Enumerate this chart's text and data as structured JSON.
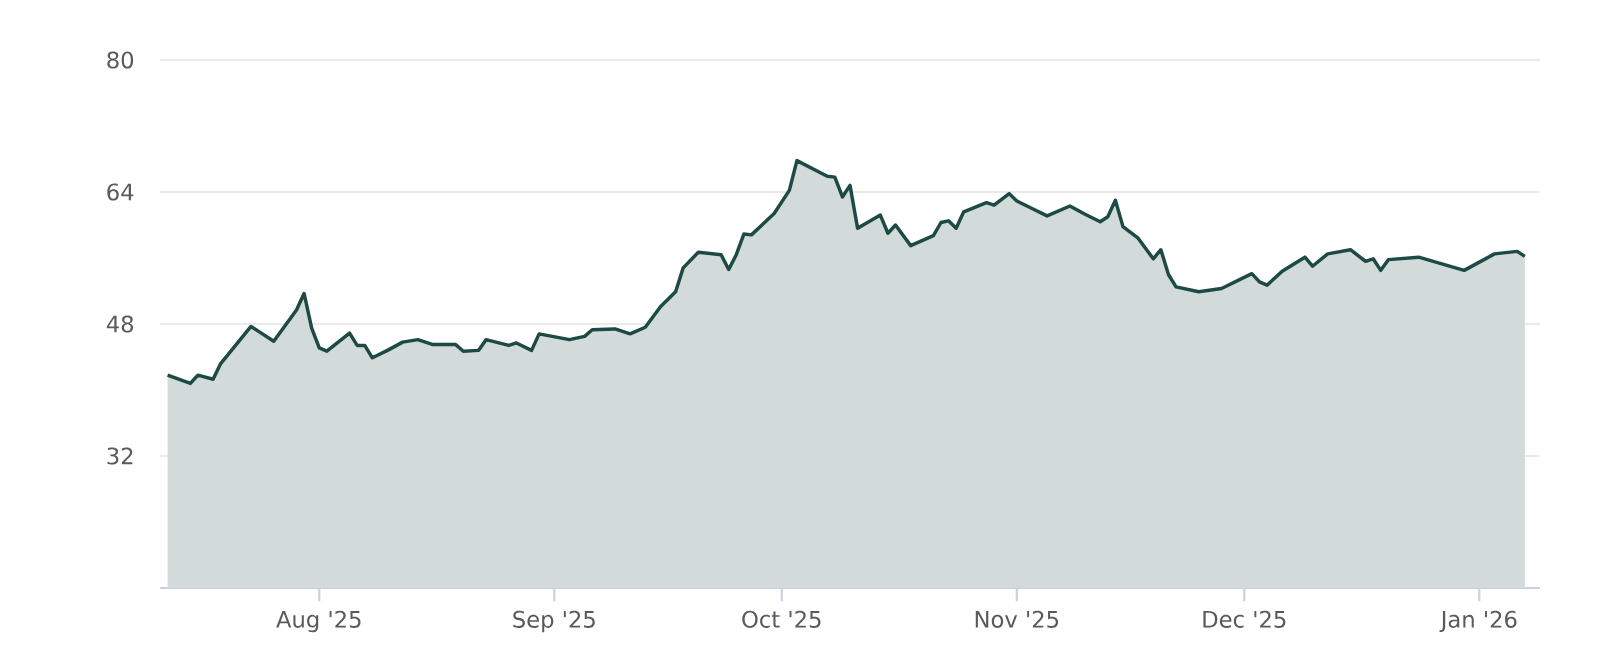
{
  "chart_data": {
    "type": "area",
    "grid": "y",
    "xlim": [
      "2025-07-11",
      "2026-01-09"
    ],
    "xticks": [
      {
        "value": "2025-08-01",
        "label": "Aug '25"
      },
      {
        "value": "2025-09-01",
        "label": "Sep '25"
      },
      {
        "value": "2025-10-01",
        "label": "Oct '25"
      },
      {
        "value": "2025-11-01",
        "label": "Nov '25"
      },
      {
        "value": "2025-12-01",
        "label": "Dec '25"
      },
      {
        "value": "2026-01-01",
        "label": "Jan '26"
      }
    ],
    "ylim": [
      16,
      80
    ],
    "yticks": [
      32,
      48,
      64,
      80
    ],
    "x": [
      "2025-07-12",
      "2025-07-15",
      "2025-07-16",
      "2025-07-18",
      "2025-07-19",
      "2025-07-23",
      "2025-07-24",
      "2025-07-26",
      "2025-07-29",
      "2025-07-30",
      "2025-07-31",
      "2025-08-01",
      "2025-08-02",
      "2025-08-05",
      "2025-08-06",
      "2025-08-07",
      "2025-08-08",
      "2025-08-10",
      "2025-08-12",
      "2025-08-14",
      "2025-08-16",
      "2025-08-19",
      "2025-08-20",
      "2025-08-22",
      "2025-08-23",
      "2025-08-26",
      "2025-08-27",
      "2025-08-29",
      "2025-08-30",
      "2025-09-03",
      "2025-09-05",
      "2025-09-06",
      "2025-09-09",
      "2025-09-11",
      "2025-09-13",
      "2025-09-15",
      "2025-09-17",
      "2025-09-18",
      "2025-09-20",
      "2025-09-23",
      "2025-09-24",
      "2025-09-25",
      "2025-09-26",
      "2025-09-27",
      "2025-09-30",
      "2025-10-02",
      "2025-10-03",
      "2025-10-07",
      "2025-10-08",
      "2025-10-09",
      "2025-10-10",
      "2025-10-11",
      "2025-10-14",
      "2025-10-15",
      "2025-10-16",
      "2025-10-18",
      "2025-10-21",
      "2025-10-22",
      "2025-10-23",
      "2025-10-24",
      "2025-10-25",
      "2025-10-28",
      "2025-10-29",
      "2025-10-31",
      "2025-11-01",
      "2025-11-03",
      "2025-11-05",
      "2025-11-08",
      "2025-11-10",
      "2025-11-12",
      "2025-11-13",
      "2025-11-14",
      "2025-11-15",
      "2025-11-17",
      "2025-11-19",
      "2025-11-20",
      "2025-11-21",
      "2025-11-22",
      "2025-11-25",
      "2025-11-28",
      "2025-12-02",
      "2025-12-03",
      "2025-12-04",
      "2025-12-06",
      "2025-12-09",
      "2025-12-10",
      "2025-12-12",
      "2025-12-15",
      "2025-12-17",
      "2025-12-18",
      "2025-12-19",
      "2025-12-20",
      "2025-12-24",
      "2025-12-30",
      "2026-01-03",
      "2026-01-06",
      "2026-01-07"
    ],
    "series": [
      {
        "color": "#1e4a45",
        "values": [
          41.8,
          40.8,
          41.8,
          41.3,
          43.2,
          47.7,
          47.1,
          45.9,
          49.7,
          51.7,
          47.5,
          45.1,
          44.7,
          46.9,
          45.4,
          45.4,
          43.9,
          44.8,
          45.8,
          46.1,
          45.5,
          45.5,
          44.7,
          44.8,
          46.1,
          45.4,
          45.7,
          44.8,
          46.8,
          46.1,
          46.5,
          47.3,
          47.4,
          46.8,
          47.6,
          50.1,
          51.9,
          54.8,
          56.7,
          56.4,
          54.6,
          56.4,
          58.9,
          58.8,
          61.4,
          64.2,
          67.8,
          65.9,
          65.8,
          63.4,
          64.8,
          59.6,
          61.2,
          59.0,
          60.0,
          57.5,
          58.7,
          60.3,
          60.5,
          59.6,
          61.6,
          62.7,
          62.4,
          63.8,
          62.9,
          62.0,
          61.1,
          62.3,
          61.3,
          60.4,
          61.0,
          63.0,
          59.8,
          58.4,
          55.9,
          57.0,
          54.0,
          52.5,
          51.9,
          52.3,
          54.1,
          53.1,
          52.7,
          54.4,
          56.1,
          55.0,
          56.5,
          57.0,
          55.6,
          55.9,
          54.5,
          55.8,
          56.1,
          54.5,
          56.5,
          56.8,
          56.2
        ]
      }
    ]
  }
}
